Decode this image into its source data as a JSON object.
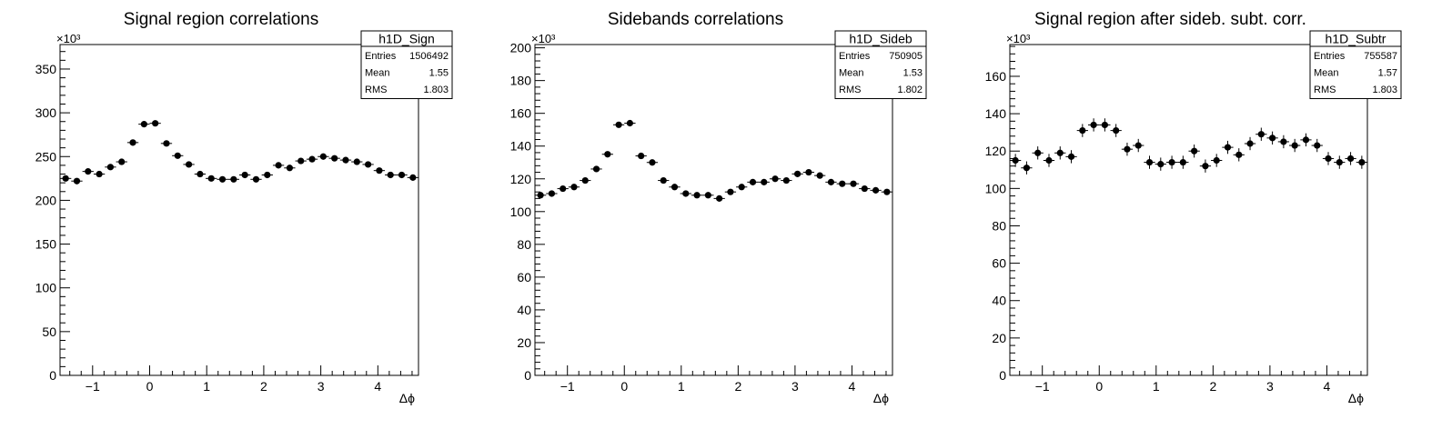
{
  "chart_data": [
    {
      "type": "scatter",
      "title": "Signal region correlations",
      "xlabel": "Δϕ",
      "ylabel": "",
      "y_multiplier_label": "×10³",
      "xlim": [
        -1.5708,
        4.7124
      ],
      "ylim": [
        0,
        378
      ],
      "xticks": [
        -1,
        0,
        1,
        2,
        3,
        4
      ],
      "yticks": [
        0,
        50,
        100,
        150,
        200,
        250,
        300,
        350
      ],
      "stats": {
        "name": "h1D_Sign",
        "rows": [
          {
            "label": "Entries",
            "value": "1506492"
          },
          {
            "label": "Mean",
            "value": "1.55"
          },
          {
            "label": "RMS",
            "value": "1.803"
          }
        ]
      },
      "series": [
        {
          "y": [
            225,
            222,
            233,
            230,
            238,
            244,
            266,
            287,
            288,
            265,
            251,
            241,
            230,
            225,
            224,
            224,
            229,
            224,
            229,
            240,
            237,
            245,
            247,
            250,
            248,
            246,
            244,
            241,
            234,
            229,
            229,
            226
          ],
          "yerr": [
            0,
            0,
            0,
            0,
            0,
            0,
            0,
            0,
            0,
            0,
            0,
            0,
            0,
            0,
            0,
            0,
            0,
            0,
            0,
            0,
            0,
            0,
            0,
            0,
            0,
            0,
            0,
            0,
            0,
            0,
            0,
            0
          ]
        }
      ]
    },
    {
      "type": "scatter",
      "title": "Sidebands correlations",
      "xlabel": "Δϕ",
      "ylabel": "",
      "y_multiplier_label": "×10³",
      "xlim": [
        -1.5708,
        4.7124
      ],
      "ylim": [
        0,
        202
      ],
      "xticks": [
        -1,
        0,
        1,
        2,
        3,
        4
      ],
      "yticks": [
        0,
        20,
        40,
        60,
        80,
        100,
        120,
        140,
        160,
        180,
        200
      ],
      "stats": {
        "name": "h1D_Sideb",
        "rows": [
          {
            "label": "Entries",
            "value": "750905"
          },
          {
            "label": "Mean",
            "value": "1.53"
          },
          {
            "label": "RMS",
            "value": "1.802"
          }
        ]
      },
      "series": [
        {
          "y": [
            110,
            111,
            114,
            115,
            119,
            126,
            135,
            153,
            154,
            134,
            130,
            119,
            115,
            111,
            110,
            110,
            108,
            112,
            115,
            118,
            118,
            120,
            119,
            123,
            124,
            122,
            118,
            117,
            117,
            114,
            113,
            112
          ],
          "yerr": [
            0,
            0,
            0,
            0,
            0,
            0,
            0,
            0,
            0,
            0,
            0,
            0,
            0,
            0,
            0,
            0,
            0,
            0,
            0,
            0,
            0,
            0,
            0,
            0,
            0,
            0,
            0,
            0,
            0,
            0,
            0,
            0
          ]
        }
      ]
    },
    {
      "type": "scatter",
      "title": "Signal region after sideb. subt. corr.",
      "xlabel": "Δϕ",
      "ylabel": "",
      "y_multiplier_label": "×10³",
      "xlim": [
        -1.5708,
        4.7124
      ],
      "ylim": [
        0,
        177
      ],
      "xticks": [
        -1,
        0,
        1,
        2,
        3,
        4
      ],
      "yticks": [
        0,
        20,
        40,
        60,
        80,
        100,
        120,
        140,
        160
      ],
      "stats": {
        "name": "h1D_Subtr",
        "rows": [
          {
            "label": "Entries",
            "value": "755587"
          },
          {
            "label": "Mean",
            "value": "1.57"
          },
          {
            "label": "RMS",
            "value": "1.803"
          }
        ]
      },
      "series": [
        {
          "y": [
            115,
            111,
            119,
            115,
            119,
            117,
            131,
            134,
            134,
            131,
            121,
            123,
            114,
            113,
            114,
            114,
            120,
            112,
            115,
            122,
            118,
            124,
            129,
            127,
            125,
            123,
            126,
            123,
            116,
            114,
            116,
            114
          ],
          "yerr": [
            3.5,
            3.5,
            3.5,
            3.5,
            3.5,
            3.5,
            3.5,
            3.5,
            3.5,
            3.5,
            3.5,
            3.5,
            3.5,
            3.5,
            3.5,
            3.5,
            3.5,
            3.5,
            3.5,
            3.5,
            3.5,
            3.5,
            3.5,
            3.5,
            3.5,
            3.5,
            3.5,
            3.5,
            3.5,
            3.5,
            3.5,
            3.5
          ]
        }
      ]
    }
  ]
}
